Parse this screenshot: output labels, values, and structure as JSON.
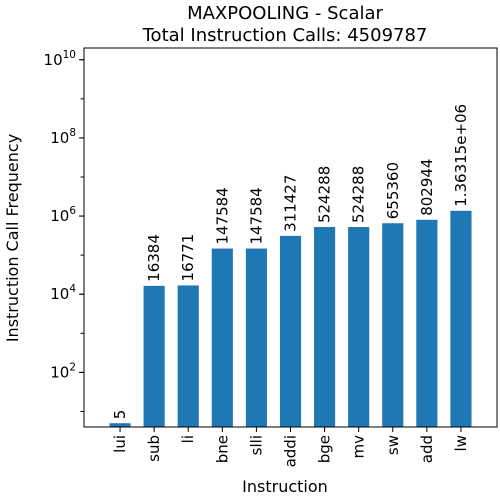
{
  "chart_data": {
    "type": "bar",
    "title": "MAXPOOLING - Scalar",
    "subtitle": "Total Instruction Calls: 4509787",
    "xlabel": "Instruction",
    "ylabel": "Instruction Call Frequency",
    "yscale": "log",
    "ylim": [
      4,
      20000000000
    ],
    "yticks": [
      {
        "base": "10",
        "exp": "2",
        "value": 100
      },
      {
        "base": "10",
        "exp": "4",
        "value": 10000
      },
      {
        "base": "10",
        "exp": "6",
        "value": 1000000
      },
      {
        "base": "10",
        "exp": "8",
        "value": 100000000
      },
      {
        "base": "10",
        "exp": "10",
        "value": 10000000000
      }
    ],
    "categories": [
      "lui",
      "sub",
      "li",
      "bne",
      "slli",
      "addi",
      "bge",
      "mv",
      "sw",
      "add",
      "lw"
    ],
    "values": [
      5,
      16384,
      16771,
      147584,
      147584,
      311427,
      524288,
      524288,
      655360,
      802944,
      1363150
    ],
    "data_labels": [
      "5",
      "16384",
      "16771",
      "147584",
      "147584",
      "311427",
      "524288",
      "524288",
      "655360",
      "802944",
      "1.36315e+06"
    ],
    "grid": false,
    "color": "#1f77b4"
  }
}
